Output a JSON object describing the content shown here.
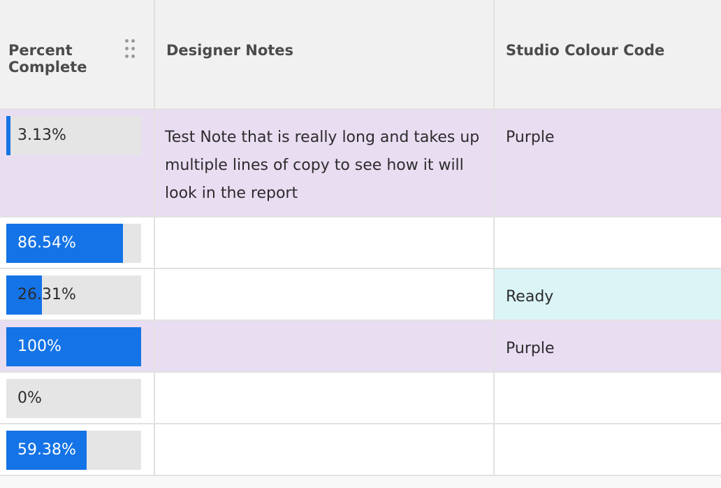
{
  "columns": [
    "Percent Complete",
    "Designer Notes",
    "Studio Colour Code"
  ],
  "colors": {
    "accent": "#1473e6",
    "purple_row": "#e9ddf2",
    "ready_cell": "#dbf4f6",
    "track": "#e5e5e5"
  },
  "rows": [
    {
      "percent": 3.13,
      "label": "3.13%",
      "notes": "Test Note that is really long and takes up multiple lines of copy to see how it will look in the report",
      "colour": "Purple",
      "row_bg": "#e9ddf2",
      "colour_bg": ""
    },
    {
      "percent": 86.54,
      "label": "86.54%",
      "notes": "",
      "colour": "",
      "row_bg": "#ffffff",
      "colour_bg": ""
    },
    {
      "percent": 26.31,
      "label": "26.31%",
      "notes": "",
      "colour": "Ready",
      "row_bg": "#ffffff",
      "colour_bg": "#dbf4f6"
    },
    {
      "percent": 100,
      "label": "100%",
      "notes": "",
      "colour": "Purple",
      "row_bg": "#e9ddf2",
      "colour_bg": ""
    },
    {
      "percent": 0,
      "label": "0%",
      "notes": "",
      "colour": "",
      "row_bg": "#ffffff",
      "colour_bg": ""
    },
    {
      "percent": 59.38,
      "label": "59.38%",
      "notes": "",
      "colour": "",
      "row_bg": "#ffffff",
      "colour_bg": ""
    }
  ]
}
